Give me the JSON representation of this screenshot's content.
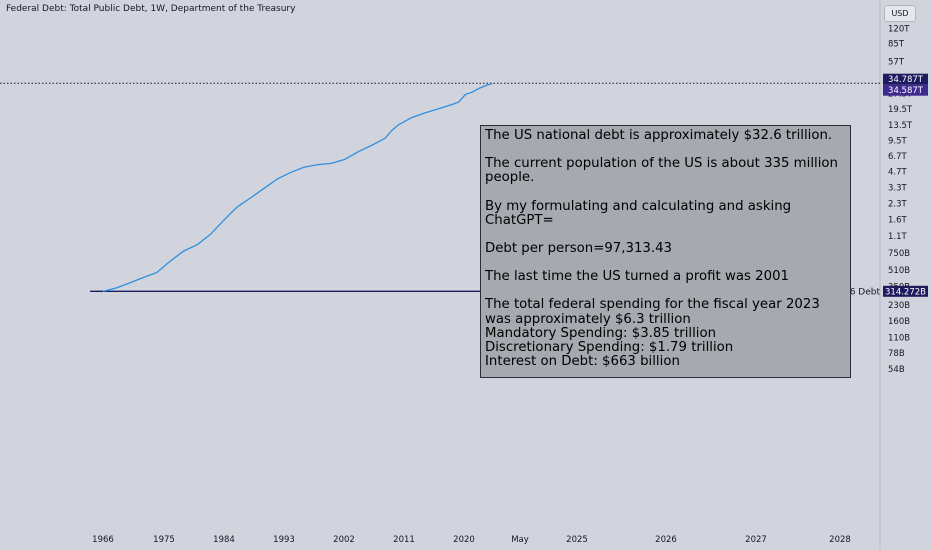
{
  "header": {
    "title": "Federal Debt: Total Public Debt, 1W, Department of the Treasury",
    "currency": "USD"
  },
  "note": {
    "lines": [
      "The US national debt is approximately $32.6 trillion.",
      "The current population of the US is about 335 million people.",
      "By my formulating and calculating and asking ChatGPT=",
      "Debt per person=97,313.43",
      "The last time the US turned a profit was 2001"
    ],
    "spending_intro": "The total federal spending for the fiscal year 2023 was approximately $6.3 trillion",
    "spending_items": [
      "Mandatory Spending: $3.85 trillion",
      "Discretionary Spending: $1.79 trillion",
      "Interest on Debt: $663 billion"
    ]
  },
  "colors": {
    "background": "#d1d4dc",
    "series": "#2f8fe0",
    "hline": "#1a1a66",
    "price_badge": "#1e1a5e",
    "last_badge": "#3f2a8f"
  },
  "chart_data": {
    "type": "line",
    "title": "Federal Debt: Total Public Debt, 1W, Department of the Treasury",
    "y_scale": "log",
    "y_unit": "USD",
    "x_tick_labels": [
      "1966",
      "1975",
      "1984",
      "1993",
      "2002",
      "2011",
      "2020",
      "May",
      "2025",
      "2026",
      "2027",
      "2028"
    ],
    "y_tick_labels": [
      "120T",
      "85T",
      "57T",
      "27.5T",
      "19.5T",
      "13.5T",
      "9.5T",
      "6.7T",
      "4.7T",
      "3.3T",
      "2.3T",
      "1.6T",
      "1.1T",
      "750B",
      "510B",
      "350B",
      "230B",
      "160B",
      "110B",
      "78B",
      "54B"
    ],
    "y_tick_values": [
      120000,
      85000,
      57000,
      27500,
      19500,
      13500,
      9500,
      6700,
      4700,
      3300,
      2300,
      1600,
      1100,
      750,
      510,
      350,
      230,
      160,
      110,
      78,
      54
    ],
    "price_labels": {
      "high": "34.787T",
      "last": "34.587T",
      "baseline": "314.272B"
    },
    "price_values_billions": {
      "high": 34787,
      "last": 34587,
      "baseline": 314.272
    },
    "horizontal_line_label": "1966 Debt",
    "series": [
      {
        "x": [
          1966,
          1968,
          1970,
          1972,
          1974,
          1976,
          1978,
          1980,
          1982,
          1984,
          1986,
          1988,
          1990,
          1992,
          1994,
          1996,
          1998,
          2000,
          2002,
          2004,
          2006,
          2008,
          2009,
          2010,
          2012,
          2014,
          2016,
          2018,
          2019,
          2020,
          2021,
          2022,
          2023,
          2024
        ],
        "y": [
          314,
          340,
          380,
          430,
          480,
          620,
          780,
          900,
          1140,
          1570,
          2120,
          2600,
          3230,
          4000,
          4640,
          5220,
          5530,
          5670,
          6200,
          7380,
          8510,
          10000,
          11900,
          13560,
          16000,
          17800,
          19500,
          21500,
          22700,
          27000,
          28400,
          30900,
          33000,
          34587
        ]
      }
    ]
  }
}
